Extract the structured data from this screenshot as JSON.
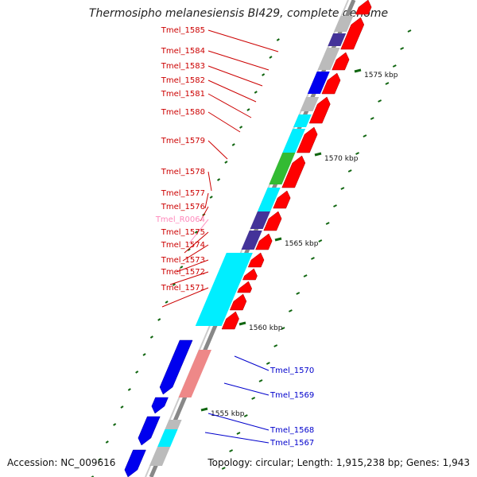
{
  "title": "Thermosipho melanesiensis BI429, complete genome",
  "footer": {
    "accession": "Accession: NC_009616",
    "summary": "Topology: circular; Length: 1,915,238 bp; Genes: 1,943"
  },
  "colors": {
    "cds_red": "#ff0000",
    "cds_blue": "#0000ee",
    "label_red": "#cc0000",
    "label_blue": "#0000cc",
    "label_pink": "#ff88bb",
    "cog_cyan": "#00eeff",
    "cog_green": "#33bb33",
    "cog_purple": "#443399",
    "cog_gray": "#bbbbbb",
    "cog_salmon": "#ee8888",
    "tick_green": "#116611"
  },
  "ruler_labels": [
    "1575 kbp",
    "1570 kbp",
    "1565 kbp",
    "1560 kbp",
    "1555 kbp"
  ],
  "genes_forward": [
    {
      "label": "Tmel_1585"
    },
    {
      "label": "Tmel_1584"
    },
    {
      "label": "Tmel_1583"
    },
    {
      "label": "Tmel_1582"
    },
    {
      "label": "Tmel_1581"
    },
    {
      "label": "Tmel_1580"
    },
    {
      "label": "Tmel_1579"
    },
    {
      "label": "Tmel_1578"
    },
    {
      "label": "Tmel_1577"
    },
    {
      "label": "Tmel_1576"
    },
    {
      "label": "Tmel_R0064"
    },
    {
      "label": "Tmel_1575"
    },
    {
      "label": "Tmel_1574"
    },
    {
      "label": "Tmel_1573"
    },
    {
      "label": "Tmel_1572"
    },
    {
      "label": "Tmel_1571"
    }
  ],
  "genes_reverse": [
    {
      "label": "Tmel_1570"
    },
    {
      "label": "Tmel_1569"
    },
    {
      "label": "Tmel_1568"
    },
    {
      "label": "Tmel_1567"
    }
  ]
}
